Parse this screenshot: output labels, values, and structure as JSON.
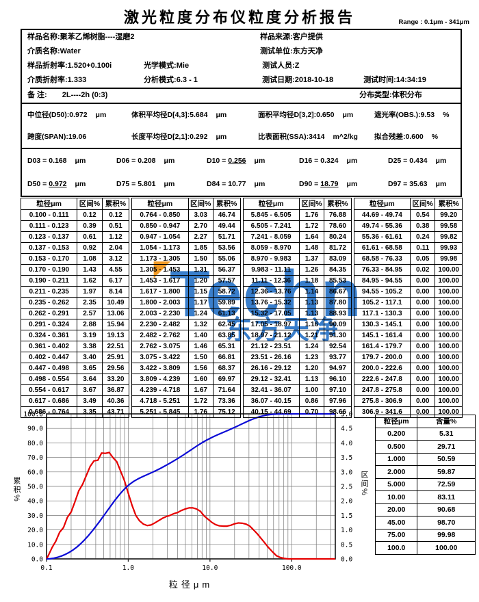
{
  "header": {
    "title": "激光粒度分布仪粒度分析报告",
    "range_label": "Range : 0.1μm - 341μm"
  },
  "info": {
    "sample_name_label": "样品名称:",
    "sample_name": "聚苯乙烯树脂----湿磨2",
    "sample_source_label": "样品来源:",
    "sample_source": "客户提供",
    "medium_name_label": "介质名称:",
    "medium_name": "Water",
    "test_unit_label": "测试单位:",
    "test_unit": "东方天净",
    "sample_ri_label": "样品折射率:",
    "sample_ri": "1.520+0.100i",
    "optical_mode_label": "光学模式:",
    "optical_mode": "Mie",
    "tester_label": "测试人员:",
    "tester": "Z",
    "medium_ri_label": "介质折射率:",
    "medium_ri": "1.333",
    "analysis_mode_label": "分析模式:",
    "analysis_mode": "6.3 - 1",
    "test_date_label": "测试日期:",
    "test_date": "2018-10-18",
    "test_time_label": "测试时间:",
    "test_time": "14:34:19",
    "remark_label": "备  注:",
    "remark": "2L----2h  (0:3)",
    "dist_type_label": "分布类型:",
    "dist_type": "体积分布"
  },
  "stats": {
    "items": [
      {
        "label": "中位径(D50):",
        "value": "0.972",
        "unit": "μm"
      },
      {
        "label": "体积平均径D[4,3]:",
        "value": "5.684",
        "unit": "μm"
      },
      {
        "label": "面积平均径D[3,2]:",
        "value": "0.650",
        "unit": "μm"
      },
      {
        "label": "遮光率(OBS.):",
        "value": "9.53",
        "unit": "%"
      },
      {
        "label": "跨度(SPAN):",
        "value": "19.06",
        "unit": ""
      },
      {
        "label": "长度平均径D[2,1]:",
        "value": "0.292",
        "unit": "μm"
      },
      {
        "label": "比表面积(SSA):",
        "value": "3414",
        "unit": "m^2/kg"
      },
      {
        "label": "拟合残差:",
        "value": "0.600",
        "unit": "%"
      }
    ]
  },
  "dvalues": {
    "separator": " = ",
    "unit": "μm",
    "items": [
      {
        "name": "D03",
        "value": "0.168",
        "underline": false
      },
      {
        "name": "D06",
        "value": "0.208",
        "underline": false
      },
      {
        "name": "D10",
        "value": "0.256",
        "underline": true
      },
      {
        "name": "D16",
        "value": "0.324",
        "underline": false
      },
      {
        "name": "D25",
        "value": "0.434",
        "underline": false
      },
      {
        "name": "D50",
        "value": "0.972",
        "underline": true
      },
      {
        "name": "D75",
        "value": "5.801",
        "underline": false
      },
      {
        "name": "D84",
        "value": "10.77",
        "underline": false
      },
      {
        "name": "D90",
        "value": "18.79",
        "underline": true
      },
      {
        "name": "D97",
        "value": "35.63",
        "underline": false
      }
    ]
  },
  "size_table": {
    "headers": [
      "粒径μm",
      "区间%",
      "累积%"
    ],
    "groups": 4,
    "rows_per_group": 19,
    "note": "rows are formatted from chart_data.bin_edges / interval_pct / cumulative_pct"
  },
  "content_table": {
    "headers": [
      "粒径μm",
      "含量%"
    ],
    "rows": [
      [
        "0.200",
        "5.31"
      ],
      [
        "0.500",
        "29.71"
      ],
      [
        "1.000",
        "50.59"
      ],
      [
        "2.000",
        "59.87"
      ],
      [
        "5.000",
        "72.59"
      ],
      [
        "10.00",
        "83.11"
      ],
      [
        "20.00",
        "90.68"
      ],
      [
        "45.00",
        "98.70"
      ],
      [
        "75.00",
        "99.98"
      ],
      [
        "100.0",
        "100.00"
      ]
    ]
  },
  "watermark": {
    "text": "Techn",
    "subtext": "东方天净",
    "color": "#1667c2",
    "accent_color": "#f08a00",
    "accent_glyph": "◤"
  },
  "chart_data": {
    "type": "line",
    "title": "",
    "xlabel": "粒径μm",
    "ylabel_left": "累积%",
    "ylabel_right": "区间%",
    "x_scale": "log",
    "xlim": [
      0.1,
      341.6
    ],
    "ylim_left": [
      0,
      100
    ],
    "ylim_right": [
      0,
      5
    ],
    "x_ticks": [
      "0.1",
      "1.0",
      "10.0",
      "100.0"
    ],
    "y_tick_step_left": 10,
    "y_tick_step_right": 0.5,
    "grid": true,
    "series": [
      {
        "name": "累积%",
        "axis": "left",
        "color": "#0b0bd6",
        "source": "cumulative_pct vs upper bin edge"
      },
      {
        "name": "区间%",
        "axis": "right",
        "color": "#e60000",
        "source": "interval_pct vs geometric bin midpoint"
      }
    ],
    "bin_edges": [
      0.1,
      0.111,
      0.123,
      0.137,
      0.153,
      0.17,
      0.19,
      0.211,
      0.235,
      0.262,
      0.291,
      0.324,
      0.361,
      0.402,
      0.447,
      0.498,
      0.554,
      0.617,
      0.686,
      0.764,
      0.85,
      0.947,
      1.054,
      1.173,
      1.305,
      1.453,
      1.617,
      1.8,
      2.003,
      2.23,
      2.482,
      2.762,
      3.075,
      3.422,
      3.809,
      4.239,
      4.718,
      5.251,
      5.845,
      6.505,
      7.241,
      8.059,
      8.97,
      9.983,
      11.11,
      12.36,
      13.76,
      15.32,
      17.05,
      18.97,
      21.12,
      23.51,
      26.16,
      29.12,
      32.41,
      36.07,
      40.15,
      44.69,
      49.74,
      55.36,
      61.61,
      68.58,
      76.33,
      84.95,
      94.55,
      105.2,
      117.1,
      130.3,
      145.1,
      161.4,
      179.7,
      200.0,
      222.6,
      247.8,
      275.8,
      306.9,
      341.6
    ],
    "interval_pct": [
      0.12,
      0.39,
      0.61,
      0.92,
      1.08,
      1.43,
      1.62,
      1.97,
      2.35,
      2.57,
      2.88,
      3.19,
      3.38,
      3.4,
      3.65,
      3.64,
      3.67,
      3.49,
      3.35,
      3.03,
      2.7,
      2.27,
      1.85,
      1.5,
      1.31,
      1.2,
      1.15,
      1.17,
      1.24,
      1.32,
      1.4,
      1.46,
      1.5,
      1.56,
      1.6,
      1.67,
      1.72,
      1.76,
      1.76,
      1.72,
      1.64,
      1.48,
      1.37,
      1.26,
      1.18,
      1.14,
      1.13,
      1.13,
      1.16,
      1.21,
      1.24,
      1.23,
      1.2,
      1.13,
      1.0,
      0.86,
      0.7,
      0.54,
      0.38,
      0.24,
      0.11,
      0.05,
      0.02,
      0.0,
      0.0,
      0.0,
      0.0,
      0.0,
      0.0,
      0.0,
      0.0,
      0.0,
      0.0,
      0.0,
      0.0,
      0.0
    ],
    "cumulative_pct": [
      0.12,
      0.51,
      1.12,
      2.04,
      3.12,
      4.55,
      6.17,
      8.14,
      10.49,
      13.06,
      15.94,
      19.13,
      22.51,
      25.91,
      29.56,
      33.2,
      36.87,
      40.36,
      43.71,
      46.74,
      49.44,
      51.71,
      53.56,
      55.06,
      56.37,
      57.57,
      58.72,
      59.89,
      61.13,
      62.45,
      63.85,
      65.31,
      66.81,
      68.37,
      69.97,
      71.64,
      73.36,
      75.12,
      76.88,
      78.6,
      80.24,
      81.72,
      83.09,
      84.35,
      85.53,
      86.67,
      87.8,
      88.93,
      90.09,
      91.3,
      92.54,
      93.77,
      94.97,
      96.1,
      97.1,
      97.96,
      98.66,
      99.2,
      99.58,
      99.82,
      99.93,
      99.98,
      100.0,
      100.0,
      100.0,
      100.0,
      100.0,
      100.0,
      100.0,
      100.0,
      100.0,
      100.0,
      100.0,
      100.0,
      100.0,
      100.0
    ]
  }
}
